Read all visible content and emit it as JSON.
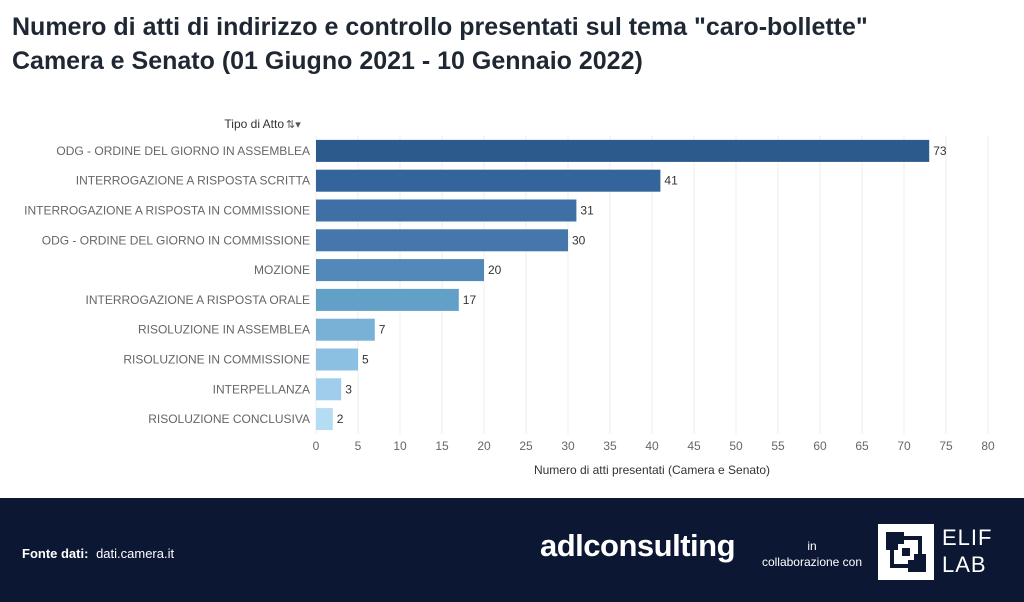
{
  "title": {
    "line1": "Numero di atti di indirizzo e controllo presentati sul tema \"caro-bollette\"",
    "line2": "Camera e Senato (01 Giugno 2021 - 10 Gennaio 2022)"
  },
  "chart_data": {
    "type": "bar",
    "orientation": "horizontal",
    "row_header": "Tipo di Atto",
    "categories": [
      "ODG - ORDINE DEL GIORNO IN ASSEMBLEA",
      "INTERROGAZIONE A RISPOSTA SCRITTA",
      "INTERROGAZIONE A RISPOSTA IN COMMISSIONE",
      "ODG - ORDINE DEL GIORNO IN COMMISSIONE",
      "MOZIONE",
      "INTERROGAZIONE A RISPOSTA ORALE",
      "RISOLUZIONE IN ASSEMBLEA",
      "RISOLUZIONE IN COMMISSIONE",
      "INTERPELLANZA",
      "RISOLUZIONE CONCLUSIVA"
    ],
    "values": [
      73,
      41,
      31,
      30,
      20,
      17,
      7,
      5,
      3,
      2
    ],
    "colors": [
      "#2c5a8c",
      "#33649a",
      "#3e70a6",
      "#4577ac",
      "#5288ba",
      "#62a0c7",
      "#79b1d6",
      "#8cc0e2",
      "#a1cdec",
      "#b4dcf3"
    ],
    "xlabel": "Numero di atti presentati (Camera e Senato)",
    "xlim": [
      0,
      80
    ],
    "xticks": [
      0,
      5,
      10,
      15,
      20,
      25,
      30,
      35,
      40,
      45,
      50,
      55,
      60,
      65,
      70,
      75,
      80
    ],
    "gridlines": true,
    "sort_icon": "sort-descending-icon"
  },
  "footer": {
    "source_label": "Fonte dati:",
    "source_value": "dati.camera.it",
    "brand": "adlconsulting",
    "collab_line1": "in",
    "collab_line2": "collaborazione con",
    "partner_line1": "ELIF",
    "partner_line2": "LAB"
  }
}
